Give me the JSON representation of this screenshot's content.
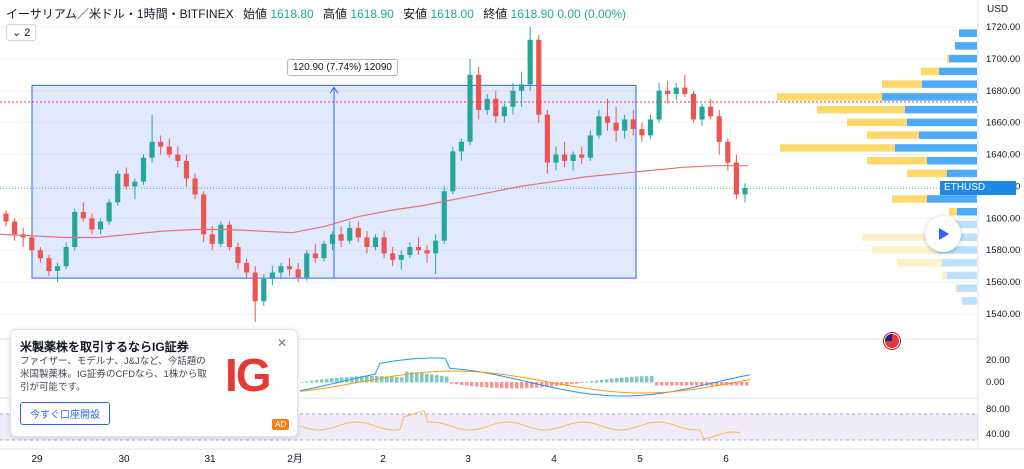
{
  "header": {
    "title": "イーサリアム／米ドル・1時間・BITFINEX",
    "open_label": "始値",
    "open": "1618.80",
    "high_label": "高値",
    "high": "1618.90",
    "low_label": "安値",
    "low": "1618.00",
    "close_label": "終値",
    "close": "1618.90",
    "change": "0.00 (0.00%)"
  },
  "collapse_count": "2",
  "currency": "USD",
  "symbol": "ETHUSD",
  "last_price": "1618.90",
  "measure_label": "120.90 (7.74%) 12090",
  "colors": {
    "up": "#26a69a",
    "down": "#ef5350",
    "ma": "#e57373",
    "vp_blue": "#42a5f5",
    "vp_yellow": "#fdd663",
    "accent": "#2962ff"
  },
  "ad": {
    "title": "米製薬株を取引するならIG証券",
    "body": "ファイザー、モデルナ、J&Jなど、今話題の米国製薬株。IG証券のCFDなら、1株から取引が可能です。",
    "button": "今すぐ口座開設",
    "logo": "IG",
    "badge": "AD"
  },
  "chart_data": {
    "type": "candlestick",
    "y_ticks": [
      1720,
      1700,
      1680,
      1660,
      1640,
      1620,
      1600,
      1580,
      1560,
      1540
    ],
    "y_tick_labels": [
      "1720.00",
      "1700.00",
      "1680.00",
      "1660.00",
      "1640.00",
      "1620.00",
      "1600.00",
      "1580.00",
      "1560.00",
      "1540.00"
    ],
    "ylim": [
      1532,
      1726
    ],
    "x_labels": [
      "29",
      "30",
      "31",
      "2月",
      "2",
      "3",
      "4",
      "5",
      "6"
    ],
    "macd_labels": [
      "20.00",
      "0.00"
    ],
    "rsi_labels": [
      "80.00",
      "40.00"
    ],
    "red_level": 1673,
    "measure_range": [
      1562.5,
      1683.4
    ],
    "ohlc": [
      [
        1603,
        1605,
        1595,
        1598
      ],
      [
        1598,
        1600,
        1586,
        1590
      ],
      [
        1590,
        1594,
        1582,
        1588
      ],
      [
        1588,
        1590,
        1578,
        1580
      ],
      [
        1580,
        1582,
        1572,
        1575
      ],
      [
        1575,
        1577,
        1564,
        1567
      ],
      [
        1567,
        1572,
        1560,
        1570
      ],
      [
        1570,
        1585,
        1568,
        1582
      ],
      [
        1582,
        1606,
        1580,
        1604
      ],
      [
        1604,
        1610,
        1598,
        1600
      ],
      [
        1600,
        1603,
        1590,
        1593
      ],
      [
        1593,
        1600,
        1590,
        1598
      ],
      [
        1598,
        1612,
        1596,
        1610
      ],
      [
        1610,
        1630,
        1608,
        1628
      ],
      [
        1628,
        1632,
        1618,
        1620
      ],
      [
        1620,
        1625,
        1612,
        1623
      ],
      [
        1623,
        1640,
        1621,
        1638
      ],
      [
        1638,
        1665,
        1635,
        1648
      ],
      [
        1648,
        1652,
        1640,
        1645
      ],
      [
        1645,
        1650,
        1638,
        1640
      ],
      [
        1640,
        1645,
        1632,
        1636
      ],
      [
        1636,
        1640,
        1620,
        1625
      ],
      [
        1625,
        1628,
        1612,
        1615
      ],
      [
        1615,
        1617,
        1585,
        1590
      ],
      [
        1590,
        1595,
        1580,
        1584
      ],
      [
        1584,
        1598,
        1582,
        1596
      ],
      [
        1596,
        1598,
        1580,
        1582
      ],
      [
        1582,
        1585,
        1568,
        1572
      ],
      [
        1572,
        1575,
        1562,
        1566
      ],
      [
        1566,
        1570,
        1535,
        1548
      ],
      [
        1548,
        1565,
        1545,
        1562
      ],
      [
        1562,
        1570,
        1558,
        1566
      ],
      [
        1566,
        1572,
        1562,
        1570
      ],
      [
        1570,
        1575,
        1564,
        1568
      ],
      [
        1568,
        1572,
        1560,
        1563
      ],
      [
        1563,
        1580,
        1561,
        1578
      ],
      [
        1578,
        1584,
        1572,
        1575
      ],
      [
        1575,
        1586,
        1573,
        1584
      ],
      [
        1584,
        1592,
        1580,
        1590
      ],
      [
        1590,
        1595,
        1582,
        1586
      ],
      [
        1586,
        1598,
        1584,
        1594
      ],
      [
        1594,
        1598,
        1585,
        1588
      ],
      [
        1588,
        1592,
        1578,
        1582
      ],
      [
        1582,
        1590,
        1580,
        1588
      ],
      [
        1588,
        1592,
        1575,
        1578
      ],
      [
        1578,
        1582,
        1570,
        1574
      ],
      [
        1574,
        1580,
        1568,
        1577
      ],
      [
        1577,
        1585,
        1575,
        1582
      ],
      [
        1582,
        1588,
        1577,
        1580
      ],
      [
        1580,
        1583,
        1572,
        1578
      ],
      [
        1578,
        1590,
        1565,
        1586
      ],
      [
        1586,
        1620,
        1584,
        1617
      ],
      [
        1617,
        1645,
        1615,
        1642
      ],
      [
        1642,
        1650,
        1636,
        1648
      ],
      [
        1648,
        1700,
        1646,
        1690
      ],
      [
        1690,
        1695,
        1662,
        1668
      ],
      [
        1668,
        1678,
        1665,
        1675
      ],
      [
        1675,
        1680,
        1660,
        1664
      ],
      [
        1664,
        1672,
        1660,
        1670
      ],
      [
        1670,
        1685,
        1665,
        1680
      ],
      [
        1680,
        1692,
        1670,
        1684
      ],
      [
        1684,
        1720,
        1680,
        1712
      ],
      [
        1712,
        1715,
        1660,
        1665
      ],
      [
        1665,
        1668,
        1628,
        1635
      ],
      [
        1635,
        1645,
        1630,
        1640
      ],
      [
        1640,
        1648,
        1632,
        1636
      ],
      [
        1636,
        1642,
        1630,
        1640
      ],
      [
        1640,
        1645,
        1634,
        1638
      ],
      [
        1638,
        1655,
        1636,
        1652
      ],
      [
        1652,
        1668,
        1650,
        1664
      ],
      [
        1664,
        1675,
        1655,
        1660
      ],
      [
        1660,
        1670,
        1648,
        1655
      ],
      [
        1655,
        1665,
        1650,
        1662
      ],
      [
        1662,
        1668,
        1652,
        1656
      ],
      [
        1656,
        1660,
        1648,
        1652
      ],
      [
        1652,
        1665,
        1650,
        1662
      ],
      [
        1662,
        1685,
        1660,
        1680
      ],
      [
        1680,
        1686,
        1672,
        1678
      ],
      [
        1678,
        1685,
        1674,
        1682
      ],
      [
        1682,
        1690,
        1676,
        1678
      ],
      [
        1678,
        1680,
        1660,
        1662
      ],
      [
        1662,
        1672,
        1658,
        1670
      ],
      [
        1670,
        1675,
        1662,
        1664
      ],
      [
        1664,
        1668,
        1640,
        1648
      ],
      [
        1648,
        1650,
        1630,
        1635
      ],
      [
        1635,
        1640,
        1612,
        1615
      ],
      [
        1615,
        1622,
        1610,
        1619
      ]
    ],
    "ma": [
      1590,
      1589,
      1588,
      1588,
      1590,
      1592,
      1593,
      1593,
      1592,
      1591,
      1595,
      1601,
      1605,
      1608,
      1612,
      1616,
      1620,
      1623,
      1626,
      1628,
      1630,
      1632,
      1633,
      1633
    ],
    "volume_profile": [
      {
        "price": 1716,
        "a": 0,
        "b": 18
      },
      {
        "price": 1708,
        "a": 0,
        "b": 22
      },
      {
        "price": 1700,
        "a": 2,
        "b": 28
      },
      {
        "price": 1692,
        "a": 18,
        "b": 38
      },
      {
        "price": 1684,
        "a": 40,
        "b": 55
      },
      {
        "price": 1676,
        "a": 105,
        "b": 95
      },
      {
        "price": 1668,
        "a": 88,
        "b": 72
      },
      {
        "price": 1660,
        "a": 60,
        "b": 70
      },
      {
        "price": 1652,
        "a": 52,
        "b": 58
      },
      {
        "price": 1644,
        "a": 115,
        "b": 82
      },
      {
        "price": 1636,
        "a": 60,
        "b": 50
      },
      {
        "price": 1628,
        "a": 40,
        "b": 30
      },
      {
        "price": 1620,
        "a": 10,
        "b": 8
      },
      {
        "price": 1612,
        "a": 35,
        "b": 50
      },
      {
        "price": 1604,
        "a": 8,
        "b": 20
      },
      {
        "price": 1596,
        "a": 12,
        "b": 35
      },
      {
        "price": 1588,
        "a": 70,
        "b": 45
      },
      {
        "price": 1580,
        "a": 65,
        "b": 40
      },
      {
        "price": 1572,
        "a": 45,
        "b": 35
      },
      {
        "price": 1564,
        "a": 5,
        "b": 30
      },
      {
        "price": 1556,
        "a": 2,
        "b": 20
      },
      {
        "price": 1548,
        "a": 0,
        "b": 15
      }
    ]
  }
}
